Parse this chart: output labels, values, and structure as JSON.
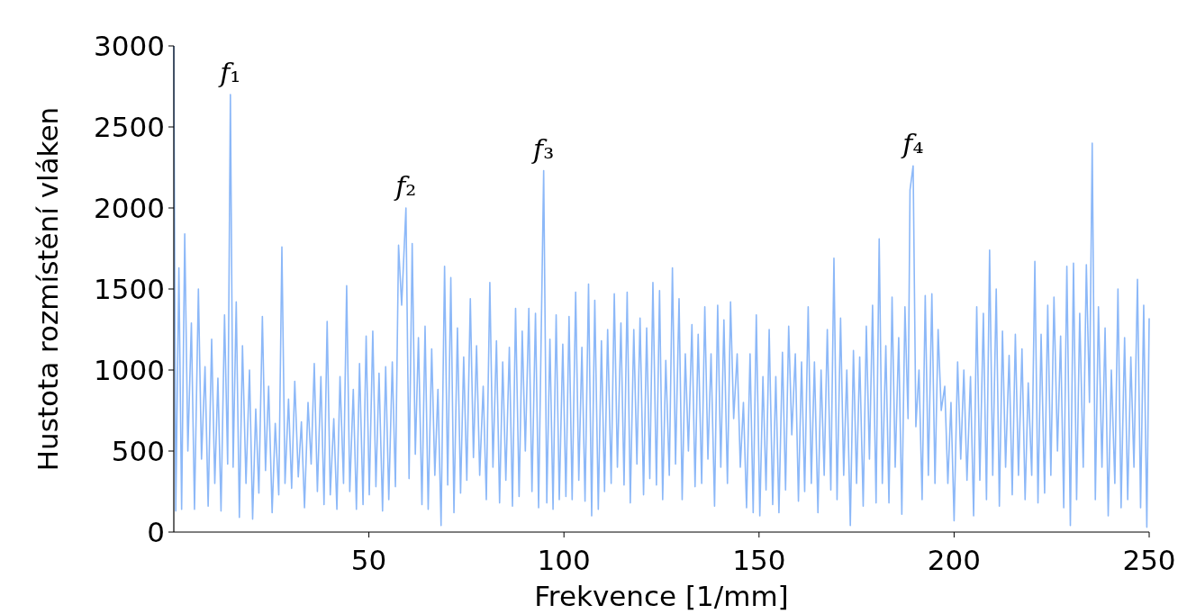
{
  "chart_data": {
    "type": "line",
    "xlabel": "Frekvence [1/mm]",
    "ylabel": "Hustota rozmístění vláken",
    "xlim": [
      0,
      250
    ],
    "xticks": [
      50,
      100,
      150,
      200,
      250
    ],
    "ylim": [
      0,
      3000
    ],
    "yticks": [
      0,
      500,
      1000,
      1500,
      2000,
      2500,
      3000
    ],
    "grid": false,
    "marker": "none",
    "line_style": "solid",
    "annotations": [
      {
        "text": "f₁",
        "x": 14.5,
        "y": 2700
      },
      {
        "text": "f₂",
        "x": 59.5,
        "y": 2000
      },
      {
        "text": "f₃",
        "x": 94.8,
        "y": 2230
      },
      {
        "text": "f₄",
        "x": 189.5,
        "y": 2260
      }
    ],
    "series": [
      {
        "color": "#8cb8f8",
        "x": [
          0,
          0.5,
          1.3,
          2,
          2.8,
          3.6,
          4.5,
          5.3,
          6.3,
          7.1,
          8,
          8.8,
          9.7,
          10.5,
          11.3,
          12.1,
          13,
          13.8,
          14.5,
          15.2,
          16,
          16.8,
          17.6,
          18.5,
          19.4,
          20.2,
          21,
          21.8,
          22.7,
          23.5,
          24.3,
          25.2,
          26,
          26.9,
          27.7,
          28.5,
          29.4,
          30.2,
          31,
          31.9,
          32.7,
          33.5,
          34.4,
          35.2,
          36,
          36.8,
          37.7,
          38.5,
          39.3,
          40.1,
          41,
          41.8,
          42.6,
          43.5,
          44.3,
          45.1,
          46,
          46.8,
          47.6,
          48.5,
          49.3,
          50.1,
          51,
          51.8,
          52.6,
          53.5,
          54.3,
          55.1,
          56,
          56.8,
          57.6,
          58.4,
          59.5,
          60.3,
          61.1,
          61.9,
          62.7,
          63.6,
          64.4,
          65.2,
          66.1,
          66.9,
          67.7,
          68.5,
          69.4,
          70.2,
          71,
          71.8,
          72.7,
          73.5,
          74.3,
          75.1,
          76,
          76.8,
          77.6,
          78.4,
          79.3,
          80.1,
          81,
          81.8,
          82.7,
          83.5,
          84.3,
          85.1,
          86,
          86.8,
          87.6,
          88.5,
          89.3,
          90.1,
          91,
          91.8,
          92.7,
          93.5,
          94.8,
          95.6,
          96.4,
          97.2,
          98,
          98.8,
          99.7,
          100.5,
          101.3,
          102.1,
          103,
          103.8,
          104.6,
          105.4,
          106.3,
          107.1,
          107.9,
          108.8,
          109.6,
          110.4,
          111.2,
          112.1,
          112.9,
          113.7,
          114.6,
          115.4,
          116.2,
          117,
          117.9,
          118.7,
          119.5,
          120.4,
          121.2,
          122,
          122.8,
          123.7,
          124.5,
          125.3,
          126.1,
          127,
          127.8,
          128.6,
          129.5,
          130.3,
          131.1,
          131.9,
          132.8,
          133.6,
          134.4,
          135.3,
          136.1,
          136.9,
          137.7,
          138.6,
          139.4,
          140.2,
          141,
          141.9,
          142.7,
          143.5,
          144.4,
          145.2,
          146,
          146.8,
          147.7,
          148.5,
          149.3,
          150.2,
          151,
          151.8,
          152.6,
          153.5,
          154.3,
          155.1,
          156,
          156.8,
          157.6,
          158.4,
          159.3,
          160.1,
          160.9,
          161.7,
          162.6,
          163.4,
          164.2,
          165.1,
          165.9,
          166.7,
          167.5,
          168.4,
          169.2,
          170,
          170.9,
          171.7,
          172.5,
          173.4,
          174.2,
          175,
          175.8,
          176.7,
          177.5,
          178.3,
          179.1,
          180,
          180.8,
          181.6,
          182.5,
          183.3,
          184.1,
          184.9,
          185.8,
          186.6,
          187.4,
          188.2,
          188.7,
          189.5,
          190.2,
          191,
          191.8,
          192.6,
          193.4,
          194.3,
          195.1,
          195.9,
          196.7,
          197.6,
          198.4,
          199.2,
          200,
          200.9,
          201.7,
          202.5,
          203.3,
          204.2,
          205,
          205.8,
          206.6,
          207.5,
          208.3,
          209.1,
          209.9,
          210.8,
          211.6,
          212.4,
          213.2,
          214.1,
          214.9,
          215.7,
          216.5,
          217.4,
          218.2,
          219,
          219.9,
          220.7,
          221.5,
          222.3,
          223.2,
          224,
          224.8,
          225.6,
          226.5,
          227.3,
          228.1,
          228.9,
          229.8,
          230.6,
          231.4,
          232.2,
          233.1,
          233.9,
          234.7,
          235.4,
          236.2,
          237,
          237.9,
          238.7,
          239.5,
          240.3,
          241.2,
          242,
          242.8,
          243.7,
          244.5,
          245.3,
          246.1,
          247,
          247.8,
          248.6,
          249.4,
          250
        ],
        "values": [
          3000,
          130,
          1630,
          140,
          1840,
          500,
          1290,
          140,
          1500,
          450,
          1020,
          160,
          1190,
          300,
          950,
          130,
          1340,
          420,
          2700,
          400,
          1420,
          90,
          1150,
          300,
          1000,
          80,
          760,
          240,
          1330,
          380,
          900,
          120,
          670,
          230,
          1760,
          300,
          820,
          270,
          930,
          340,
          680,
          150,
          800,
          420,
          1040,
          250,
          960,
          170,
          1300,
          230,
          700,
          140,
          960,
          300,
          1520,
          250,
          880,
          140,
          1040,
          170,
          1210,
          230,
          1240,
          280,
          980,
          130,
          1020,
          200,
          1050,
          280,
          1770,
          1400,
          2000,
          330,
          1780,
          480,
          1200,
          170,
          1270,
          140,
          1130,
          350,
          880,
          40,
          1640,
          290,
          1570,
          120,
          1260,
          240,
          1080,
          320,
          1440,
          460,
          1150,
          350,
          900,
          200,
          1540,
          400,
          1180,
          180,
          1050,
          320,
          1140,
          160,
          1380,
          220,
          1240,
          500,
          1380,
          250,
          1350,
          150,
          2230,
          180,
          1190,
          140,
          1340,
          200,
          1160,
          220,
          1330,
          200,
          1480,
          320,
          1140,
          190,
          1530,
          100,
          1430,
          140,
          1180,
          250,
          1250,
          300,
          1470,
          400,
          1290,
          290,
          1480,
          180,
          1250,
          420,
          1320,
          230,
          1260,
          330,
          1540,
          290,
          1490,
          200,
          1060,
          350,
          1630,
          420,
          1440,
          200,
          1100,
          500,
          1280,
          280,
          1220,
          300,
          1390,
          450,
          1100,
          160,
          1400,
          400,
          1310,
          300,
          1420,
          700,
          1100,
          400,
          800,
          150,
          1100,
          120,
          1340,
          100,
          960,
          260,
          1250,
          170,
          960,
          120,
          1110,
          260,
          1270,
          600,
          1100,
          190,
          1050,
          250,
          1390,
          300,
          1050,
          120,
          1000,
          350,
          1250,
          260,
          1690,
          200,
          1320,
          350,
          1000,
          40,
          1120,
          300,
          1080,
          160,
          1270,
          450,
          1400,
          180,
          1810,
          300,
          1150,
          180,
          1450,
          400,
          1200,
          110,
          1390,
          700,
          2110,
          2260,
          650,
          1000,
          200,
          1460,
          350,
          1470,
          300,
          1250,
          750,
          900,
          300,
          800,
          70,
          1050,
          450,
          1000,
          320,
          960,
          100,
          1390,
          320,
          1350,
          200,
          1740,
          350,
          1500,
          160,
          1240,
          400,
          1090,
          230,
          1220,
          350,
          1130,
          200,
          920,
          350,
          1670,
          180,
          1220,
          240,
          1400,
          350,
          1450,
          500,
          1210,
          150,
          1640,
          40,
          1660,
          200,
          1350,
          400,
          1650,
          800,
          2400,
          200,
          1390,
          400,
          1260,
          100,
          1000,
          300,
          1500,
          150,
          1200,
          200,
          1080,
          400,
          1560,
          150,
          1400,
          30,
          1320
        ]
      }
    ]
  }
}
